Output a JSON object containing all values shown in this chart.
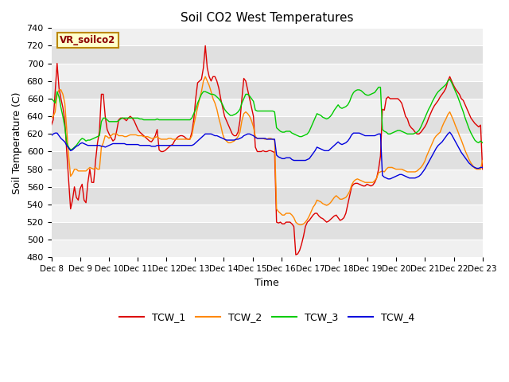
{
  "title": "Soil CO2 West Temperatures",
  "xlabel": "Time",
  "ylabel": "Soil Temperature (C)",
  "ylim": [
    480,
    740
  ],
  "yticks": [
    480,
    500,
    520,
    540,
    560,
    580,
    600,
    620,
    640,
    660,
    680,
    700,
    720,
    740
  ],
  "x_labels": [
    "Dec 8",
    "Dec 9",
    "Dec 10",
    "Dec 11",
    "Dec 12",
    "Dec 13",
    "Dec 14",
    "Dec 15",
    "Dec 16",
    "Dec 17",
    "Dec 18",
    "Dec 19",
    "Dec 20",
    "Dec 21",
    "Dec 22",
    "Dec 23"
  ],
  "annotation_text": "VR_soilco2",
  "annotation_bg": "#ffffcc",
  "annotation_border": "#bb8800",
  "colors": {
    "TCW_1": "#dd0000",
    "TCW_2": "#ff8800",
    "TCW_3": "#00cc00",
    "TCW_4": "#0000dd"
  },
  "TCW_1": [
    630,
    636,
    668,
    700,
    672,
    660,
    650,
    635,
    600,
    568,
    535,
    545,
    560,
    548,
    545,
    558,
    563,
    545,
    542,
    565,
    580,
    565,
    565,
    590,
    610,
    623,
    665,
    665,
    640,
    625,
    620,
    616,
    612,
    614,
    624,
    636,
    638,
    638,
    637,
    635,
    638,
    640,
    638,
    635,
    630,
    625,
    622,
    620,
    618,
    616,
    614,
    612,
    611,
    614,
    618,
    625,
    602,
    600,
    600,
    601,
    603,
    605,
    607,
    608,
    612,
    615,
    617,
    618,
    618,
    617,
    615,
    614,
    614,
    622,
    636,
    660,
    678,
    680,
    682,
    695,
    720,
    695,
    685,
    680,
    685,
    685,
    680,
    672,
    660,
    650,
    640,
    635,
    630,
    625,
    620,
    618,
    618,
    622,
    635,
    660,
    683,
    680,
    670,
    660,
    650,
    640,
    605,
    600,
    600,
    600,
    601,
    600,
    600,
    601,
    601,
    600,
    599,
    520,
    519,
    520,
    518,
    518,
    520,
    520,
    520,
    518,
    515,
    483,
    484,
    488,
    495,
    504,
    515,
    520,
    522,
    525,
    528,
    530,
    530,
    527,
    525,
    524,
    522,
    520,
    521,
    523,
    525,
    527,
    528,
    525,
    522,
    523,
    525,
    530,
    540,
    550,
    560,
    563,
    564,
    564,
    563,
    562,
    561,
    561,
    563,
    562,
    561,
    562,
    565,
    570,
    580,
    595,
    648,
    647,
    660,
    662,
    660,
    660,
    660,
    660,
    660,
    658,
    655,
    648,
    640,
    637,
    630,
    627,
    625,
    622,
    620,
    620,
    622,
    625,
    628,
    632,
    638,
    643,
    648,
    652,
    655,
    658,
    662,
    665,
    668,
    672,
    680,
    685,
    680,
    675,
    671,
    668,
    665,
    660,
    658,
    653,
    648,
    643,
    638,
    635,
    632,
    630,
    628,
    630,
    580
  ],
  "TCW_2": [
    638,
    640,
    645,
    665,
    670,
    670,
    665,
    655,
    625,
    595,
    572,
    575,
    580,
    580,
    578,
    578,
    578,
    578,
    578,
    580,
    582,
    581,
    580,
    582,
    580,
    580,
    605,
    610,
    618,
    617,
    615,
    618,
    620,
    620,
    620,
    618,
    618,
    618,
    617,
    617,
    618,
    619,
    619,
    619,
    619,
    618,
    618,
    618,
    617,
    617,
    617,
    616,
    615,
    615,
    616,
    617,
    615,
    614,
    614,
    614,
    614,
    615,
    615,
    614,
    614,
    614,
    614,
    614,
    614,
    614,
    614,
    614,
    614,
    618,
    630,
    640,
    650,
    660,
    668,
    680,
    685,
    680,
    675,
    668,
    660,
    655,
    648,
    638,
    630,
    620,
    614,
    612,
    610,
    610,
    611,
    612,
    614,
    617,
    622,
    635,
    643,
    645,
    643,
    640,
    635,
    628,
    617,
    615,
    615,
    615,
    615,
    614,
    614,
    615,
    615,
    614,
    613,
    535,
    532,
    530,
    528,
    528,
    530,
    530,
    530,
    528,
    525,
    520,
    518,
    517,
    517,
    518,
    520,
    523,
    527,
    532,
    537,
    540,
    545,
    544,
    543,
    541,
    540,
    539,
    540,
    542,
    545,
    548,
    550,
    548,
    546,
    546,
    547,
    548,
    551,
    555,
    562,
    566,
    568,
    569,
    568,
    567,
    566,
    565,
    565,
    565,
    565,
    565,
    567,
    570,
    576,
    577,
    578,
    577,
    580,
    582,
    582,
    582,
    581,
    580,
    580,
    580,
    580,
    579,
    578,
    577,
    577,
    577,
    577,
    577,
    578,
    580,
    582,
    585,
    589,
    595,
    600,
    605,
    610,
    615,
    618,
    620,
    622,
    628,
    633,
    637,
    642,
    645,
    640,
    635,
    629,
    624,
    618,
    613,
    607,
    601,
    596,
    591,
    587,
    584,
    581,
    580,
    580,
    580,
    590
  ],
  "TCW_3": [
    660,
    658,
    655,
    668,
    662,
    650,
    640,
    628,
    610,
    605,
    602,
    603,
    605,
    607,
    610,
    613,
    615,
    614,
    612,
    613,
    613,
    614,
    615,
    616,
    617,
    618,
    634,
    638,
    638,
    636,
    634,
    634,
    634,
    634,
    634,
    635,
    637,
    638,
    638,
    638,
    638,
    638,
    638,
    638,
    638,
    638,
    637,
    637,
    636,
    636,
    636,
    636,
    636,
    636,
    636,
    637,
    636,
    636,
    636,
    636,
    636,
    636,
    636,
    636,
    636,
    636,
    636,
    636,
    636,
    636,
    636,
    636,
    636,
    638,
    643,
    648,
    655,
    660,
    665,
    668,
    668,
    667,
    666,
    665,
    665,
    664,
    662,
    660,
    657,
    653,
    648,
    645,
    643,
    641,
    641,
    642,
    643,
    645,
    648,
    655,
    660,
    665,
    665,
    663,
    660,
    657,
    647,
    646,
    646,
    646,
    646,
    646,
    646,
    646,
    646,
    646,
    645,
    627,
    625,
    623,
    622,
    622,
    623,
    623,
    623,
    621,
    620,
    619,
    618,
    617,
    617,
    618,
    619,
    620,
    623,
    628,
    633,
    638,
    643,
    642,
    641,
    639,
    638,
    637,
    638,
    640,
    643,
    647,
    650,
    653,
    650,
    649,
    650,
    651,
    653,
    657,
    663,
    667,
    669,
    670,
    670,
    669,
    667,
    665,
    664,
    664,
    665,
    666,
    667,
    670,
    673,
    673,
    625,
    623,
    622,
    620,
    620,
    621,
    622,
    623,
    624,
    624,
    623,
    622,
    621,
    620,
    620,
    620,
    620,
    621,
    622,
    624,
    628,
    633,
    638,
    643,
    648,
    652,
    657,
    661,
    665,
    668,
    670,
    672,
    674,
    676,
    680,
    682,
    678,
    673,
    668,
    663,
    657,
    651,
    645,
    638,
    632,
    626,
    621,
    617,
    613,
    611,
    610,
    612,
    610
  ],
  "TCW_4": [
    618,
    620,
    621,
    621,
    618,
    615,
    613,
    611,
    607,
    604,
    601,
    602,
    604,
    606,
    607,
    609,
    610,
    609,
    608,
    607,
    607,
    607,
    607,
    607,
    607,
    607,
    606,
    606,
    605,
    606,
    607,
    608,
    609,
    609,
    609,
    609,
    609,
    609,
    609,
    608,
    608,
    608,
    608,
    608,
    608,
    608,
    607,
    607,
    607,
    607,
    607,
    607,
    606,
    606,
    606,
    607,
    607,
    607,
    607,
    607,
    607,
    607,
    607,
    607,
    607,
    607,
    607,
    607,
    607,
    607,
    607,
    607,
    607,
    607,
    608,
    610,
    612,
    614,
    616,
    618,
    620,
    620,
    620,
    620,
    619,
    618,
    618,
    617,
    616,
    615,
    614,
    613,
    613,
    613,
    613,
    613,
    614,
    614,
    615,
    616,
    618,
    619,
    620,
    620,
    619,
    618,
    616,
    615,
    615,
    615,
    615,
    615,
    614,
    614,
    614,
    614,
    614,
    596,
    594,
    593,
    592,
    592,
    593,
    593,
    593,
    591,
    590,
    590,
    590,
    590,
    590,
    590,
    590,
    591,
    592,
    595,
    598,
    601,
    605,
    604,
    603,
    602,
    601,
    601,
    601,
    603,
    605,
    607,
    609,
    611,
    609,
    608,
    609,
    610,
    612,
    615,
    619,
    621,
    621,
    621,
    621,
    620,
    619,
    618,
    618,
    618,
    618,
    618,
    618,
    619,
    620,
    620,
    573,
    571,
    570,
    569,
    569,
    570,
    571,
    572,
    573,
    574,
    574,
    573,
    572,
    571,
    570,
    570,
    570,
    570,
    571,
    572,
    574,
    577,
    580,
    584,
    588,
    592,
    596,
    600,
    604,
    607,
    609,
    611,
    614,
    617,
    620,
    622,
    619,
    615,
    611,
    607,
    603,
    599,
    596,
    593,
    590,
    587,
    585,
    583,
    582,
    581,
    581,
    582,
    582
  ]
}
